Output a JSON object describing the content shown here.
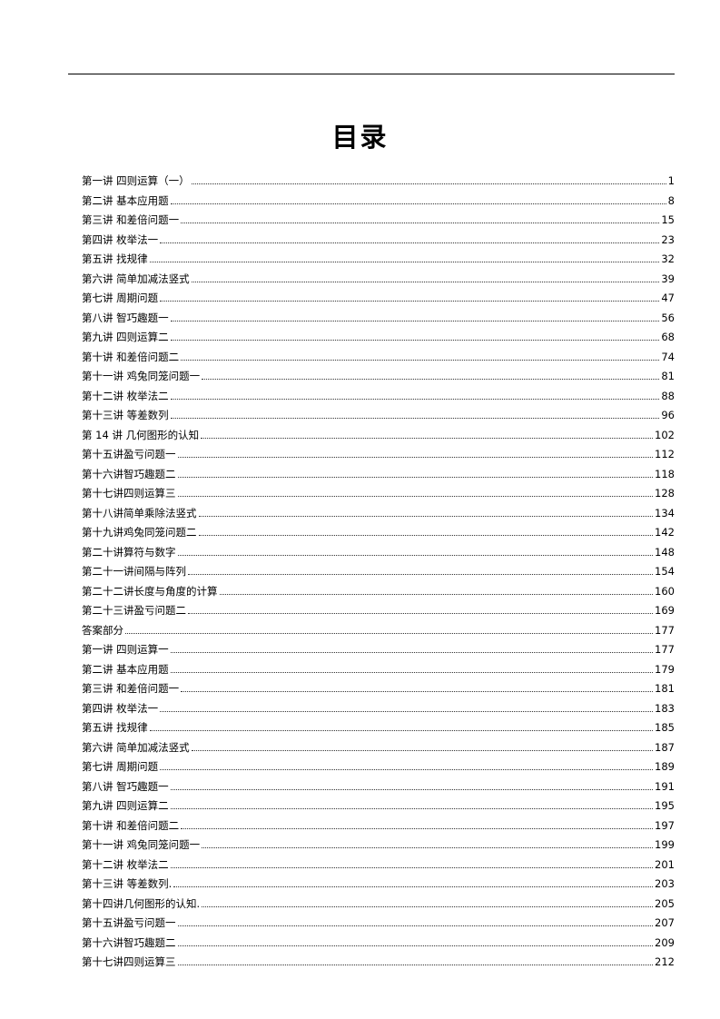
{
  "title": "目录",
  "entries": [
    {
      "label": "第一讲  四则运算（一）",
      "page": "1"
    },
    {
      "label": "第二讲 基本应用题",
      "page": "8"
    },
    {
      "label": "第三讲  和差倍问题一",
      "page": "15"
    },
    {
      "label": "第四讲 枚举法一",
      "page": "23"
    },
    {
      "label": "第五讲  找规律",
      "page": "32"
    },
    {
      "label": "第六讲 简单加减法竖式",
      "page": "39"
    },
    {
      "label": "第七讲 周期问题",
      "page": "47"
    },
    {
      "label": "第八讲 智巧趣题一",
      "page": "56"
    },
    {
      "label": "第九讲 四则运算二",
      "page": "68"
    },
    {
      "label": "第十讲 和差倍问题二",
      "page": "74"
    },
    {
      "label": "第十一讲 鸡兔同笼问题一",
      "page": "81"
    },
    {
      "label": "第十二讲 枚举法二",
      "page": "88"
    },
    {
      "label": "第十三讲  等差数列",
      "page": "96"
    },
    {
      "label": "第 14 讲  几何图形的认知",
      "page": "102"
    },
    {
      "label": "第十五讲盈亏问题一",
      "page": "112"
    },
    {
      "label": "第十六讲智巧趣题二",
      "page": "118"
    },
    {
      "label": "第十七讲四则运算三",
      "page": "128"
    },
    {
      "label": "第十八讲简单乘除法竖式",
      "page": "134"
    },
    {
      "label": "第十九讲鸡兔同笼问题二",
      "page": "142"
    },
    {
      "label": "第二十讲算符与数字",
      "page": "148"
    },
    {
      "label": "第二十一讲间隔与阵列",
      "page": "154"
    },
    {
      "label": "第二十二讲长度与角度的计算",
      "page": "160"
    },
    {
      "label": "第二十三讲盈亏问题二",
      "page": "169"
    },
    {
      "label": "答案部分",
      "page": "177"
    },
    {
      "label": "第一讲  四则运算一",
      "page": "177"
    },
    {
      "label": "第二讲 基本应用题",
      "page": "179"
    },
    {
      "label": "第三讲  和差倍问题一",
      "page": "181"
    },
    {
      "label": "第四讲 枚举法一",
      "page": "183"
    },
    {
      "label": "第五讲  找规律",
      "page": "185"
    },
    {
      "label": "第六讲 简单加减法竖式",
      "page": "187"
    },
    {
      "label": "第七讲 周期问题",
      "page": "189"
    },
    {
      "label": "第八讲 智巧趣题一",
      "page": "191"
    },
    {
      "label": "第九讲 四则运算二",
      "page": "195"
    },
    {
      "label": "第十讲 和差倍问题二",
      "page": "197"
    },
    {
      "label": "第十一讲 鸡兔同笼问题一",
      "page": "199"
    },
    {
      "label": "第十二讲 枚举法二",
      "page": "201"
    },
    {
      "label": "第十三讲  等差数列.",
      "page": "203"
    },
    {
      "label": "第十四讲几何图形的认知.",
      "page": "205"
    },
    {
      "label": "第十五讲盈亏问题一",
      "page": "207"
    },
    {
      "label": "第十六讲智巧趣题二",
      "page": "209"
    },
    {
      "label": "第十七讲四则运算三",
      "page": "212"
    }
  ]
}
